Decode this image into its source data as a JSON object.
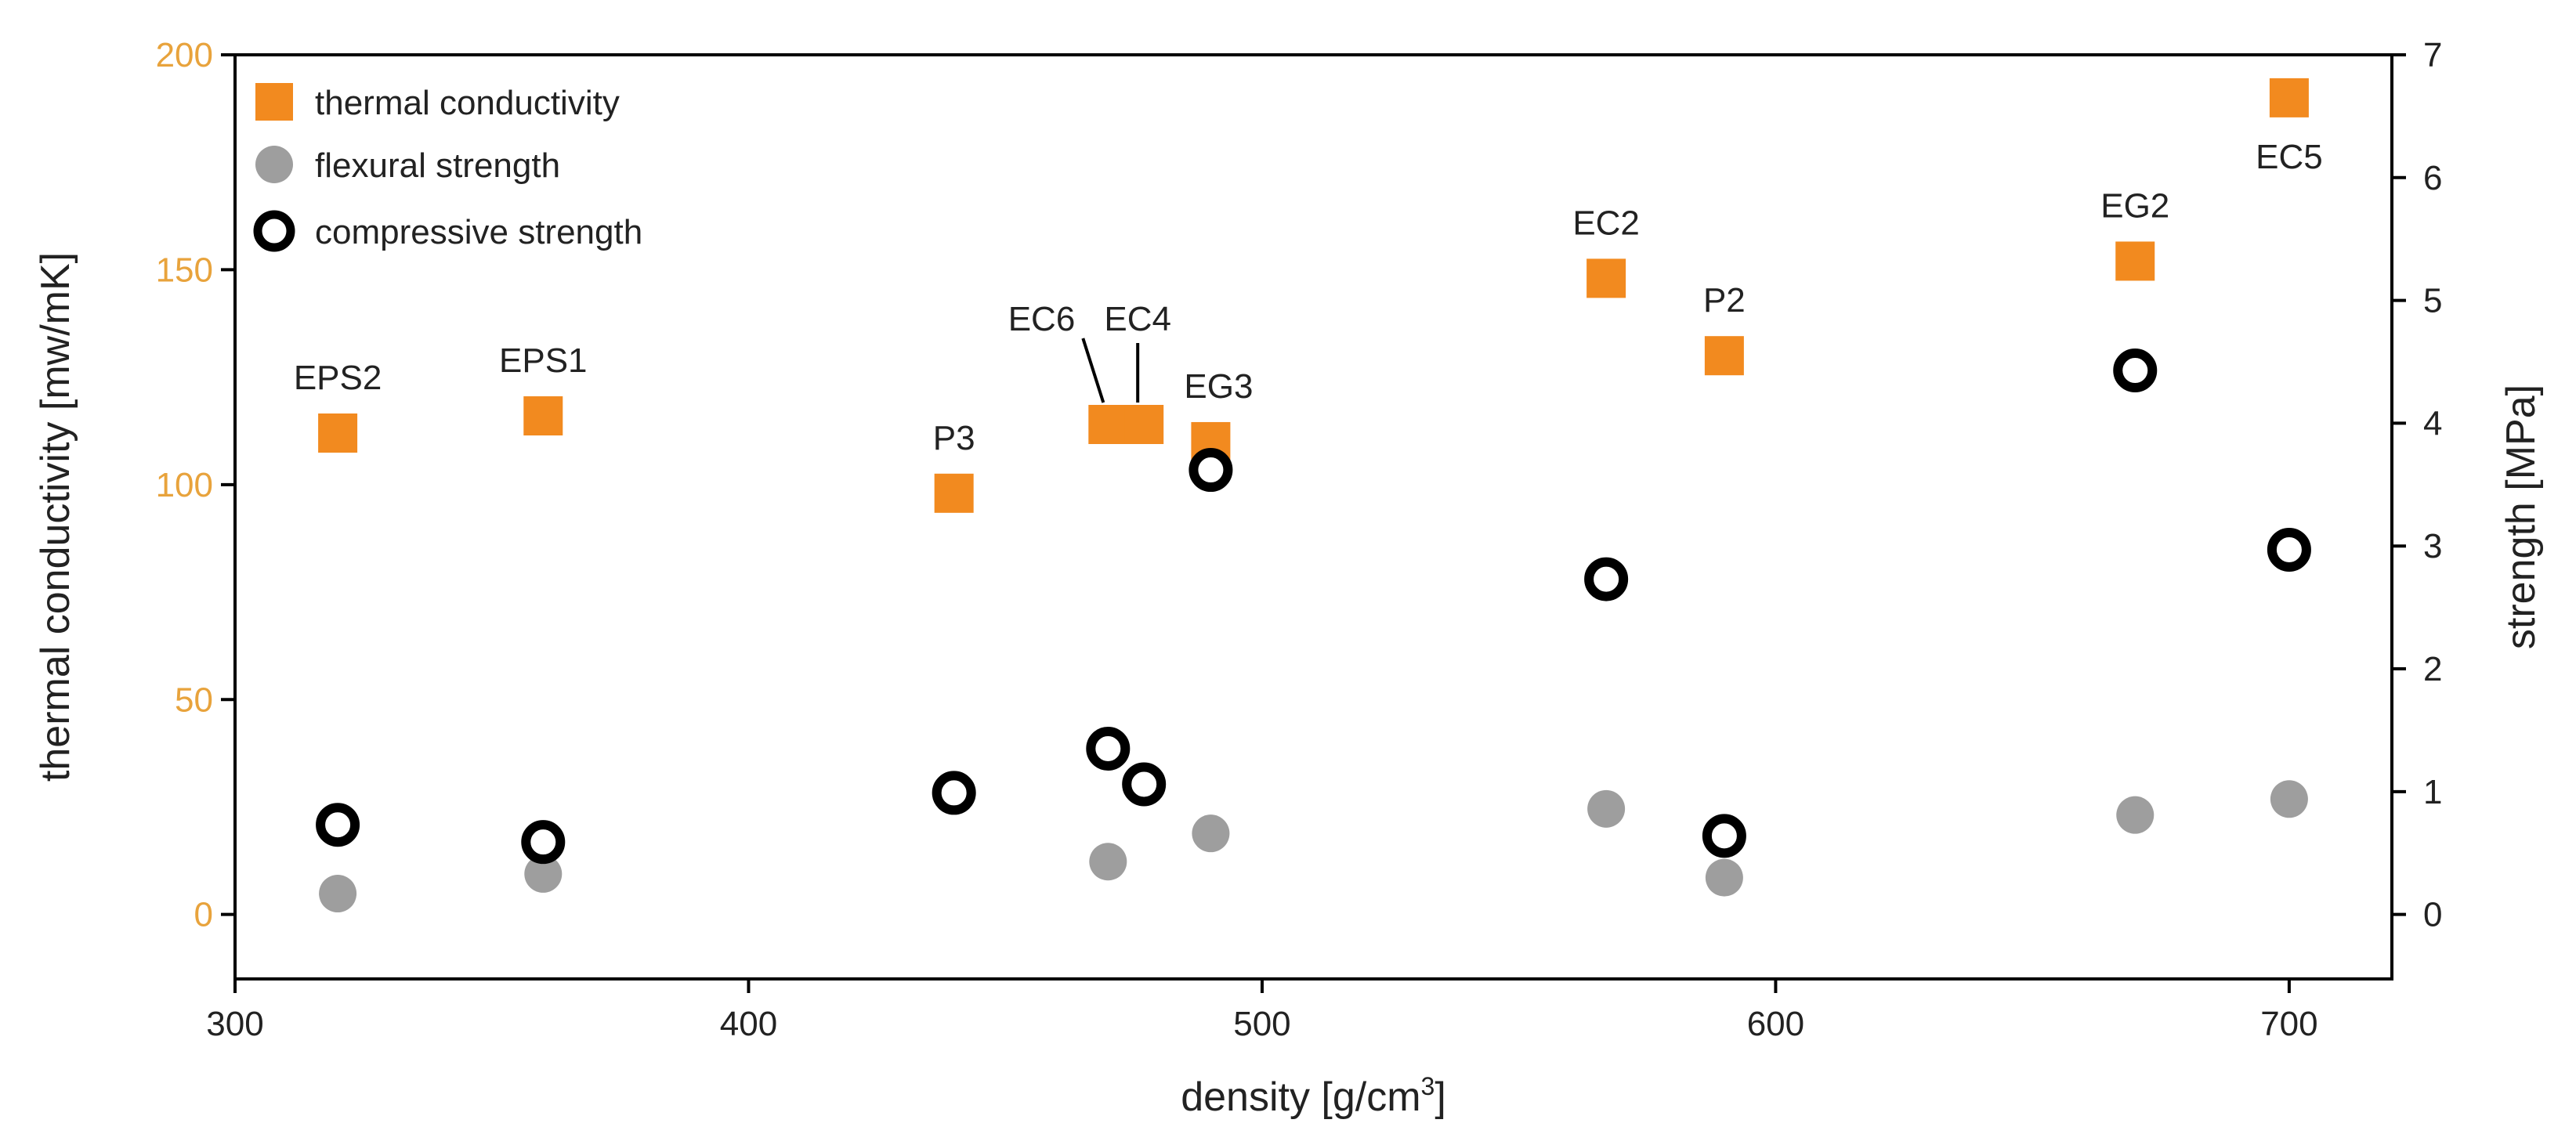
{
  "chart_data": {
    "type": "scatter",
    "x_axis": {
      "label_main": "density [g/cm",
      "label_sup": "3",
      "label_end": "]",
      "range": [
        300,
        720
      ],
      "ticks": [
        300,
        400,
        500,
        600,
        700
      ]
    },
    "y_left": {
      "label": "thermal conductivity [mw/mK]",
      "range": [
        -15,
        200
      ],
      "ticks": [
        0,
        50,
        100,
        150,
        200
      ],
      "color": "#E8A33C"
    },
    "y_right": {
      "label": "strength [MPa]",
      "range": [
        -0.525,
        7
      ],
      "ticks": [
        0,
        1,
        2,
        3,
        4,
        5,
        6,
        7
      ]
    },
    "legend": {
      "position": "top-left",
      "entries": [
        "thermal conductivity",
        "flexural strength",
        "compressive strength"
      ]
    },
    "series": [
      {
        "name": "thermal conductivity",
        "axis": "left",
        "color": "#F28A1F",
        "points": [
          {
            "label": "EPS2",
            "x": 320,
            "y": 112
          },
          {
            "label": "EPS1",
            "x": 360,
            "y": 116
          },
          {
            "label": "P3",
            "x": 440,
            "y": 98
          },
          {
            "label": "EC6",
            "x": 470,
            "y": 114
          },
          {
            "label": "EC4",
            "x": 477,
            "y": 114
          },
          {
            "label": "EG3",
            "x": 490,
            "y": 110
          },
          {
            "label": "EC2",
            "x": 567,
            "y": 148
          },
          {
            "label": "P2",
            "x": 590,
            "y": 130
          },
          {
            "label": "EG2",
            "x": 670,
            "y": 152
          },
          {
            "label": "EC5",
            "x": 700,
            "y": 190
          }
        ]
      },
      {
        "name": "flexural strength",
        "axis": "right",
        "color": "#9E9E9E",
        "points": [
          {
            "x": 320,
            "y": 0.17
          },
          {
            "x": 360,
            "y": 0.33
          },
          {
            "x": 470,
            "y": 0.43
          },
          {
            "x": 490,
            "y": 0.66
          },
          {
            "x": 567,
            "y": 0.86
          },
          {
            "x": 590,
            "y": 0.3
          },
          {
            "x": 670,
            "y": 0.81
          },
          {
            "x": 700,
            "y": 0.94
          }
        ]
      },
      {
        "name": "compressive strength",
        "axis": "right",
        "color": "#000000",
        "points": [
          {
            "x": 320,
            "y": 0.73
          },
          {
            "x": 360,
            "y": 0.59
          },
          {
            "x": 440,
            "y": 0.99
          },
          {
            "x": 470,
            "y": 1.35
          },
          {
            "x": 477,
            "y": 1.06
          },
          {
            "x": 490,
            "y": 3.62
          },
          {
            "x": 567,
            "y": 2.73
          },
          {
            "x": 590,
            "y": 0.64
          },
          {
            "x": 670,
            "y": 4.43
          },
          {
            "x": 700,
            "y": 2.97
          }
        ]
      }
    ]
  }
}
